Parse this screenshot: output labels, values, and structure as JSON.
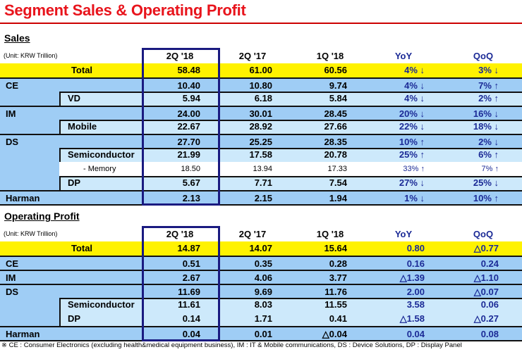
{
  "title": "Segment Sales & Operating Profit",
  "sales": {
    "heading": "Sales",
    "unit": "(Unit: KRW Trillion)",
    "columns": [
      "2Q '18",
      "2Q '17",
      "1Q '18",
      "YoY",
      "QoQ"
    ],
    "rows": [
      {
        "type": "total",
        "label": "Total",
        "values": [
          "58.48",
          "61.00",
          "60.56",
          "4% ↓",
          "3% ↓"
        ]
      },
      {
        "type": "main",
        "label": "CE",
        "values": [
          "10.40",
          "10.80",
          "9.74",
          "4% ↓",
          "7% ↑"
        ]
      },
      {
        "type": "sub",
        "label": "VD",
        "values": [
          "5.94",
          "6.18",
          "5.84",
          "4% ↓",
          "2% ↑"
        ]
      },
      {
        "type": "main",
        "label": "IM",
        "values": [
          "24.00",
          "30.01",
          "28.45",
          "20% ↓",
          "16% ↓"
        ]
      },
      {
        "type": "sub",
        "label": "Mobile",
        "values": [
          "22.67",
          "28.92",
          "27.66",
          "22% ↓",
          "18% ↓"
        ]
      },
      {
        "type": "main",
        "label": "DS",
        "values": [
          "27.70",
          "25.25",
          "28.35",
          "10% ↑",
          "2% ↓"
        ]
      },
      {
        "type": "sub",
        "label": "Semiconductor",
        "values": [
          "21.99",
          "17.58",
          "20.78",
          "25% ↑",
          "6% ↑"
        ]
      },
      {
        "type": "mem",
        "label": "- Memory",
        "values": [
          "18.50",
          "13.94",
          "17.33",
          "33% ↑",
          "7% ↑"
        ]
      },
      {
        "type": "sub",
        "label": "DP",
        "values": [
          "5.67",
          "7.71",
          "7.54",
          "27% ↓",
          "25% ↓"
        ]
      },
      {
        "type": "main",
        "label": "Harman",
        "values": [
          "2.13",
          "2.15",
          "1.94",
          "1% ↓",
          "10% ↑"
        ]
      }
    ]
  },
  "operating_profit": {
    "heading": "Operating Profit",
    "unit": "(Unit: KRW Trillion)",
    "columns": [
      "2Q '18",
      "2Q '17",
      "1Q '18",
      "YoY",
      "QoQ"
    ],
    "rows": [
      {
        "type": "total",
        "label": "Total",
        "values": [
          "14.87",
          "14.07",
          "15.64",
          "0.80",
          "△0.77"
        ]
      },
      {
        "type": "main",
        "label": "CE",
        "values": [
          "0.51",
          "0.35",
          "0.28",
          "0.16",
          "0.24"
        ]
      },
      {
        "type": "main",
        "label": "IM",
        "values": [
          "2.67",
          "4.06",
          "3.77",
          "△1.39",
          "△1.10"
        ]
      },
      {
        "type": "main",
        "label": "DS",
        "values": [
          "11.69",
          "9.69",
          "11.76",
          "2.00",
          "△0.07"
        ]
      },
      {
        "type": "sub",
        "label": "Semiconductor",
        "values": [
          "11.61",
          "8.03",
          "11.55",
          "3.58",
          "0.06"
        ]
      },
      {
        "type": "subnosep",
        "label": "DP",
        "values": [
          "0.14",
          "1.71",
          "0.41",
          "△1.58",
          "△0.27"
        ]
      },
      {
        "type": "main",
        "label": "Harman",
        "values": [
          "0.04",
          "0.01",
          "△0.04",
          "0.04",
          "0.08"
        ]
      }
    ]
  },
  "footnote": "※ CE : Consumer Electronics (excluding health&medical equipment business),  IM : IT & Mobile communications,  DS : Device Solutions,  DP : Display Panel"
}
